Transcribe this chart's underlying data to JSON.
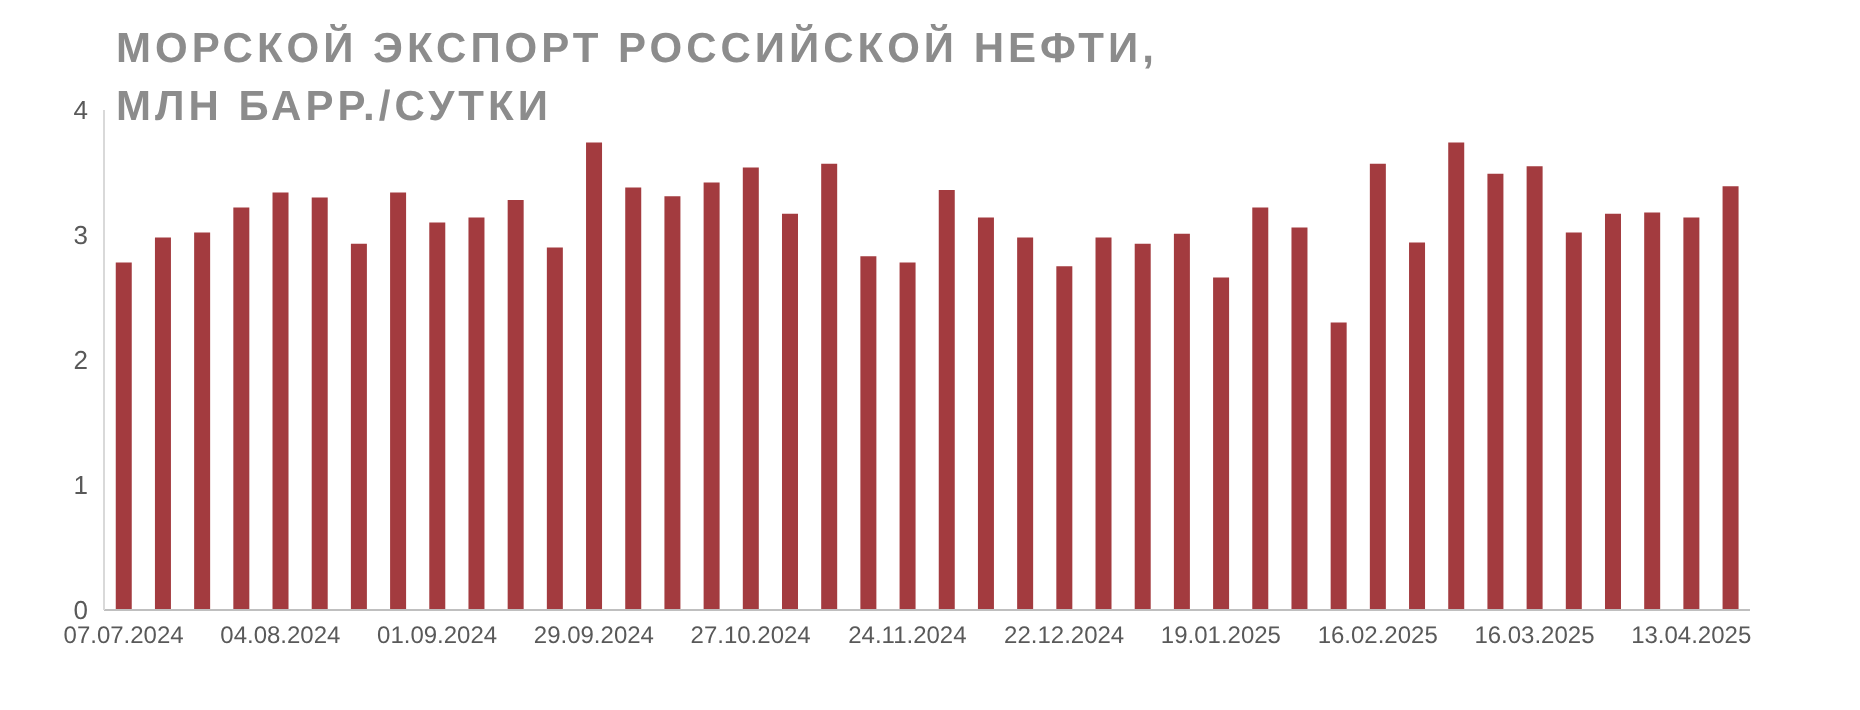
{
  "chart_data": {
    "type": "bar",
    "title": "МОРСКОЙ ЭКСПОРТ РОССИЙСКОЙ НЕФТИ, МЛН БАРР./СУТКИ",
    "categories": [
      "07.07.2024",
      null,
      null,
      null,
      "04.08.2024",
      null,
      null,
      null,
      "01.09.2024",
      null,
      null,
      null,
      "29.09.2024",
      null,
      null,
      null,
      "27.10.2024",
      null,
      null,
      null,
      "24.11.2024",
      null,
      null,
      null,
      "22.12.2024",
      null,
      null,
      null,
      "19.01.2025",
      null,
      null,
      null,
      "16.02.2025",
      null,
      null,
      null,
      "16.03.2025",
      null,
      null,
      null,
      "13.04.2025",
      null
    ],
    "values": [
      2.78,
      2.98,
      3.02,
      3.22,
      3.34,
      3.3,
      2.93,
      3.34,
      3.1,
      3.14,
      3.28,
      2.9,
      3.74,
      3.38,
      3.31,
      3.42,
      3.54,
      3.17,
      3.57,
      2.83,
      2.78,
      3.36,
      3.14,
      2.98,
      2.75,
      2.98,
      2.93,
      3.01,
      2.66,
      3.22,
      3.06,
      2.3,
      3.57,
      2.94,
      3.74,
      3.49,
      3.55,
      3.02,
      3.17,
      3.18,
      3.14,
      3.39
    ],
    "color": "#a33b3f",
    "ylim": [
      0,
      4
    ],
    "yticks": [
      0,
      1,
      2,
      3,
      4
    ]
  }
}
